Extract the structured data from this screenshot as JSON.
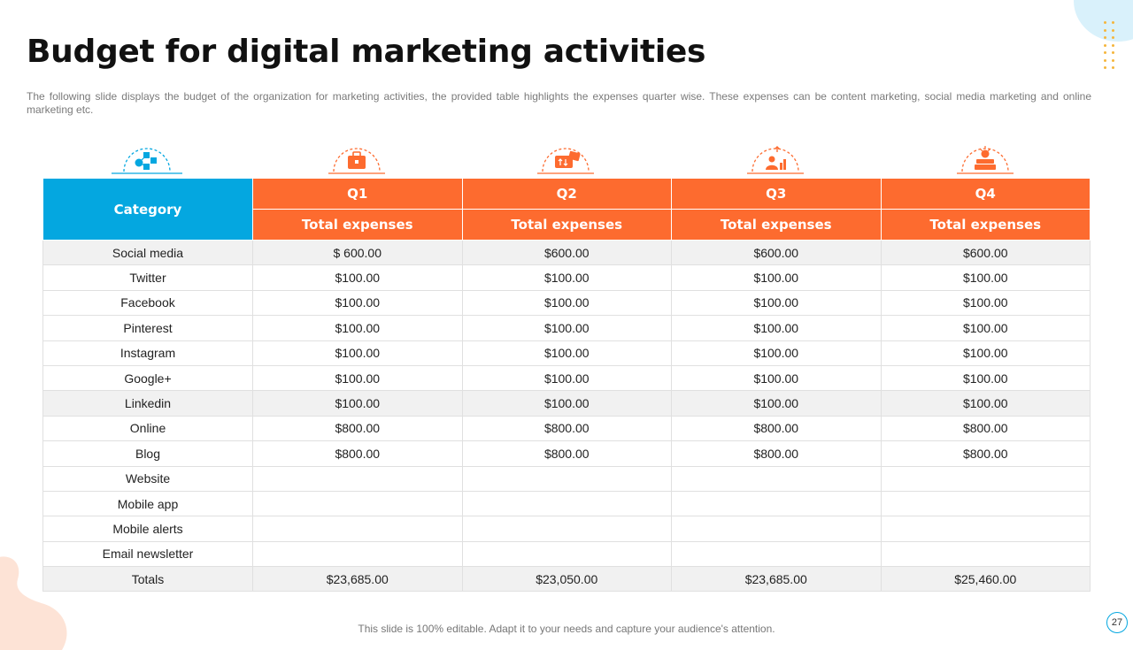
{
  "title": "Budget for digital marketing activities",
  "subtitle": "The following slide displays the budget of the organization for marketing activities, the provided table highlights the expenses quarter wise. These expenses can be content marketing, social media marketing and online marketing etc.",
  "colors": {
    "category_header": "#04a7e0",
    "quarter_header": "#fd6b2f",
    "accent_dots": "#f5b63d"
  },
  "icons": [
    "network-nodes-icon",
    "briefcase-icon",
    "money-exchange-icon",
    "growth-person-icon",
    "money-stack-icon"
  ],
  "table": {
    "category_label": "Category",
    "quarters": [
      "Q1",
      "Q2",
      "Q3",
      "Q4"
    ],
    "sub_label": "Total expenses",
    "rows": [
      [
        "Social media",
        "$ 600.00",
        "$600.00",
        "$600.00",
        "$600.00"
      ],
      [
        "Twitter",
        "$100.00",
        "$100.00",
        "$100.00",
        "$100.00"
      ],
      [
        "Facebook",
        "$100.00",
        "$100.00",
        "$100.00",
        "$100.00"
      ],
      [
        "Pinterest",
        "$100.00",
        "$100.00",
        "$100.00",
        "$100.00"
      ],
      [
        "Instagram",
        "$100.00",
        "$100.00",
        "$100.00",
        "$100.00"
      ],
      [
        "Google+",
        "$100.00",
        "$100.00",
        "$100.00",
        "$100.00"
      ],
      [
        "Linkedin",
        "$100.00",
        "$100.00",
        "$100.00",
        "$100.00"
      ],
      [
        "Online",
        "$800.00",
        "$800.00",
        "$800.00",
        "$800.00"
      ],
      [
        "Blog",
        "$800.00",
        "$800.00",
        "$800.00",
        "$800.00"
      ],
      [
        "Website",
        "",
        "",
        "",
        ""
      ],
      [
        "Mobile app",
        "",
        "",
        "",
        ""
      ],
      [
        "Mobile alerts",
        "",
        "",
        "",
        ""
      ],
      [
        "Email newsletter",
        "",
        "",
        "",
        ""
      ],
      [
        "Totals",
        "$23,685.00",
        "$23,050.00",
        "$23,685.00",
        "$25,460.00"
      ]
    ]
  },
  "footer": "This slide is 100% editable. Adapt it to your needs and capture your audience's attention.",
  "page_number": "27"
}
